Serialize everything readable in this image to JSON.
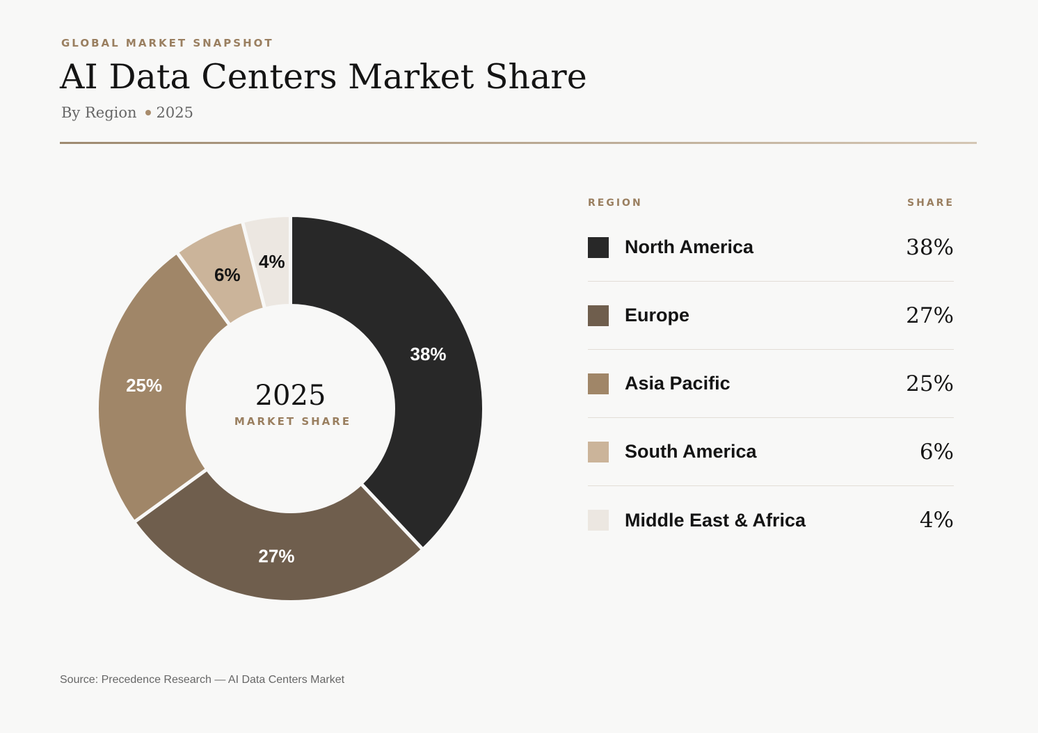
{
  "header": {
    "eyebrow": "GLOBAL MARKET SNAPSHOT",
    "title": "AI Data Centers Market Share",
    "subtitle_left": "By Region",
    "subtitle_right": "2025"
  },
  "center": {
    "year": "2025",
    "caption": "MARKET SHARE"
  },
  "legend": {
    "region_header": "REGION",
    "share_header": "SHARE",
    "rows": [
      {
        "name": "North America",
        "value": "38%",
        "color": "#282828"
      },
      {
        "name": "Europe",
        "value": "27%",
        "color": "#6f5e4d"
      },
      {
        "name": "Asia Pacific",
        "value": "25%",
        "color": "#a08668"
      },
      {
        "name": "South America",
        "value": "6%",
        "color": "#cbb49a"
      },
      {
        "name": "Middle East & Africa",
        "value": "4%",
        "color": "#ece7e1"
      }
    ]
  },
  "chart_data": {
    "type": "pie",
    "title": "AI Data Centers Market Share",
    "subtitle": "By Region • 2025",
    "categories": [
      "North America",
      "Europe",
      "Asia Pacific",
      "South America",
      "Middle East & Africa"
    ],
    "values": [
      38,
      27,
      25,
      6,
      4
    ],
    "labels": [
      "38%",
      "27%",
      "25%",
      "6%",
      "4%"
    ],
    "colors": [
      "#282828",
      "#6f5e4d",
      "#a08668",
      "#cbb49a",
      "#ece7e1"
    ],
    "label_colors": [
      "#ffffff",
      "#ffffff",
      "#ffffff",
      "#141414",
      "#141414"
    ],
    "donut": true,
    "legend_position": "right"
  },
  "footer": {
    "source": "Source: Precedence Research — AI Data Centers Market"
  }
}
